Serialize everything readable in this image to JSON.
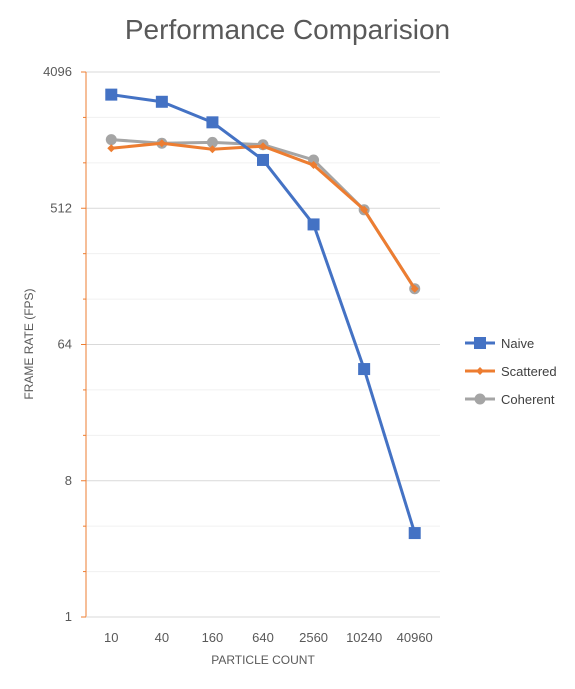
{
  "chart_data": {
    "type": "line",
    "title": "Performance Comparision",
    "xlabel": "PARTICLE COUNT",
    "ylabel": "FRAME RATE (FPS)",
    "y_scale": "log2",
    "ylim": [
      1,
      4096
    ],
    "y_ticks": [
      "1",
      "8",
      "64",
      "512",
      "4096"
    ],
    "categories": [
      "10",
      "40",
      "160",
      "640",
      "2560",
      "10240",
      "40960"
    ],
    "series": [
      {
        "name": "Naive",
        "color": "#4472C4",
        "marker": "square",
        "values": [
          2900,
          2600,
          1900,
          1070,
          400,
          44,
          3.6
        ]
      },
      {
        "name": "Scattered",
        "color": "#ED7D31",
        "marker": "diamond",
        "values": [
          1280,
          1380,
          1260,
          1320,
          990,
          500,
          150
        ]
      },
      {
        "name": "Coherent",
        "color": "#A5A5A5",
        "marker": "circle",
        "values": [
          1460,
          1380,
          1400,
          1350,
          1070,
          500,
          150
        ]
      }
    ],
    "grid": true,
    "legend": "right"
  }
}
